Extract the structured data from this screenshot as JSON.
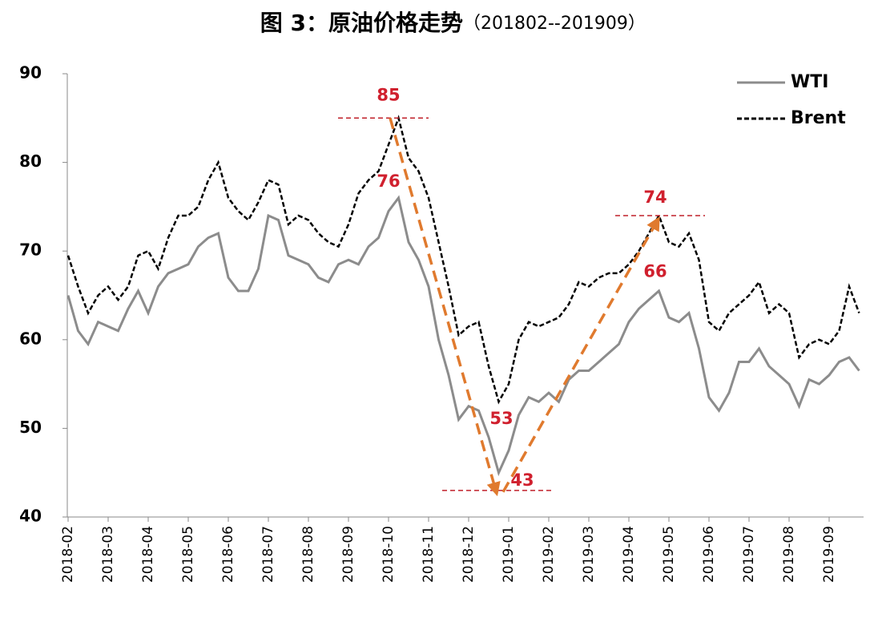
{
  "chart_data": {
    "type": "line",
    "title": "图 3：原油价格走势",
    "subtitle": "（201802--201909）",
    "categories": [
      "2018-02",
      null,
      null,
      null,
      "2018-03",
      null,
      null,
      null,
      "2018-04",
      null,
      null,
      null,
      "2018-05",
      null,
      null,
      null,
      "2018-06",
      null,
      null,
      null,
      "2018-07",
      null,
      null,
      null,
      "2018-08",
      null,
      null,
      null,
      "2018-09",
      null,
      null,
      null,
      "2018-10",
      null,
      null,
      null,
      "2018-11",
      null,
      null,
      null,
      "2018-12",
      null,
      null,
      null,
      "2019-01",
      null,
      null,
      null,
      "2019-02",
      null,
      null,
      null,
      "2019-03",
      null,
      null,
      null,
      "2019-04",
      null,
      null,
      null,
      "2019-05",
      null,
      null,
      null,
      "2019-06",
      null,
      null,
      null,
      "2019-07",
      null,
      null,
      null,
      "2019-08",
      null,
      null,
      null,
      "2019-09",
      null,
      null,
      null
    ],
    "series": [
      {
        "name": "WTI",
        "color": "#8c8c8c",
        "dash": false,
        "values": [
          65,
          61,
          59.5,
          62,
          61.5,
          61,
          63.5,
          65.5,
          63,
          66,
          67.5,
          68,
          68.5,
          70.5,
          71.5,
          72,
          67,
          65.5,
          65.5,
          68,
          74,
          73.5,
          69.5,
          69,
          68.5,
          67,
          66.5,
          68.5,
          69,
          68.5,
          70.5,
          71.5,
          74.5,
          76,
          71,
          69,
          66,
          60,
          56,
          51,
          52.5,
          52,
          49,
          45,
          47.5,
          51.5,
          53.5,
          53,
          54,
          53,
          55.5,
          56.5,
          56.5,
          57.5,
          58.5,
          59.5,
          62,
          63.5,
          64.5,
          65.5,
          62.5,
          62,
          63,
          59,
          53.5,
          52,
          54,
          57.5,
          57.5,
          59,
          57,
          56,
          55,
          52.5,
          55.5,
          55,
          56,
          57.5,
          58,
          56.5
        ]
      },
      {
        "name": "Brent",
        "color": "#000000",
        "dash": true,
        "values": [
          69.5,
          66,
          63,
          65,
          66,
          64.5,
          66,
          69.5,
          70,
          68,
          71.5,
          74,
          74,
          75,
          78,
          80,
          76,
          74.5,
          73.5,
          75.5,
          78,
          77.5,
          73,
          74,
          73.5,
          72,
          71,
          70.5,
          73,
          76.5,
          78,
          79,
          82,
          85,
          80.5,
          79,
          76,
          71,
          66,
          60.5,
          61.5,
          62,
          57,
          53,
          55,
          60,
          62,
          61.5,
          62,
          62.5,
          64,
          66.5,
          66,
          67,
          67.5,
          67.5,
          68.5,
          70,
          72,
          74,
          71,
          70.5,
          72,
          69,
          62,
          61,
          63,
          64,
          65,
          66.5,
          63,
          64,
          63,
          58,
          59.5,
          60,
          59.5,
          61,
          66,
          63
        ]
      }
    ],
    "ylim": [
      40,
      90
    ],
    "yticks": [
      40,
      50,
      60,
      70,
      80,
      90
    ],
    "grid": false,
    "legend": "top-right",
    "annotations": [
      85,
      76,
      74,
      66,
      53,
      43
    ]
  }
}
